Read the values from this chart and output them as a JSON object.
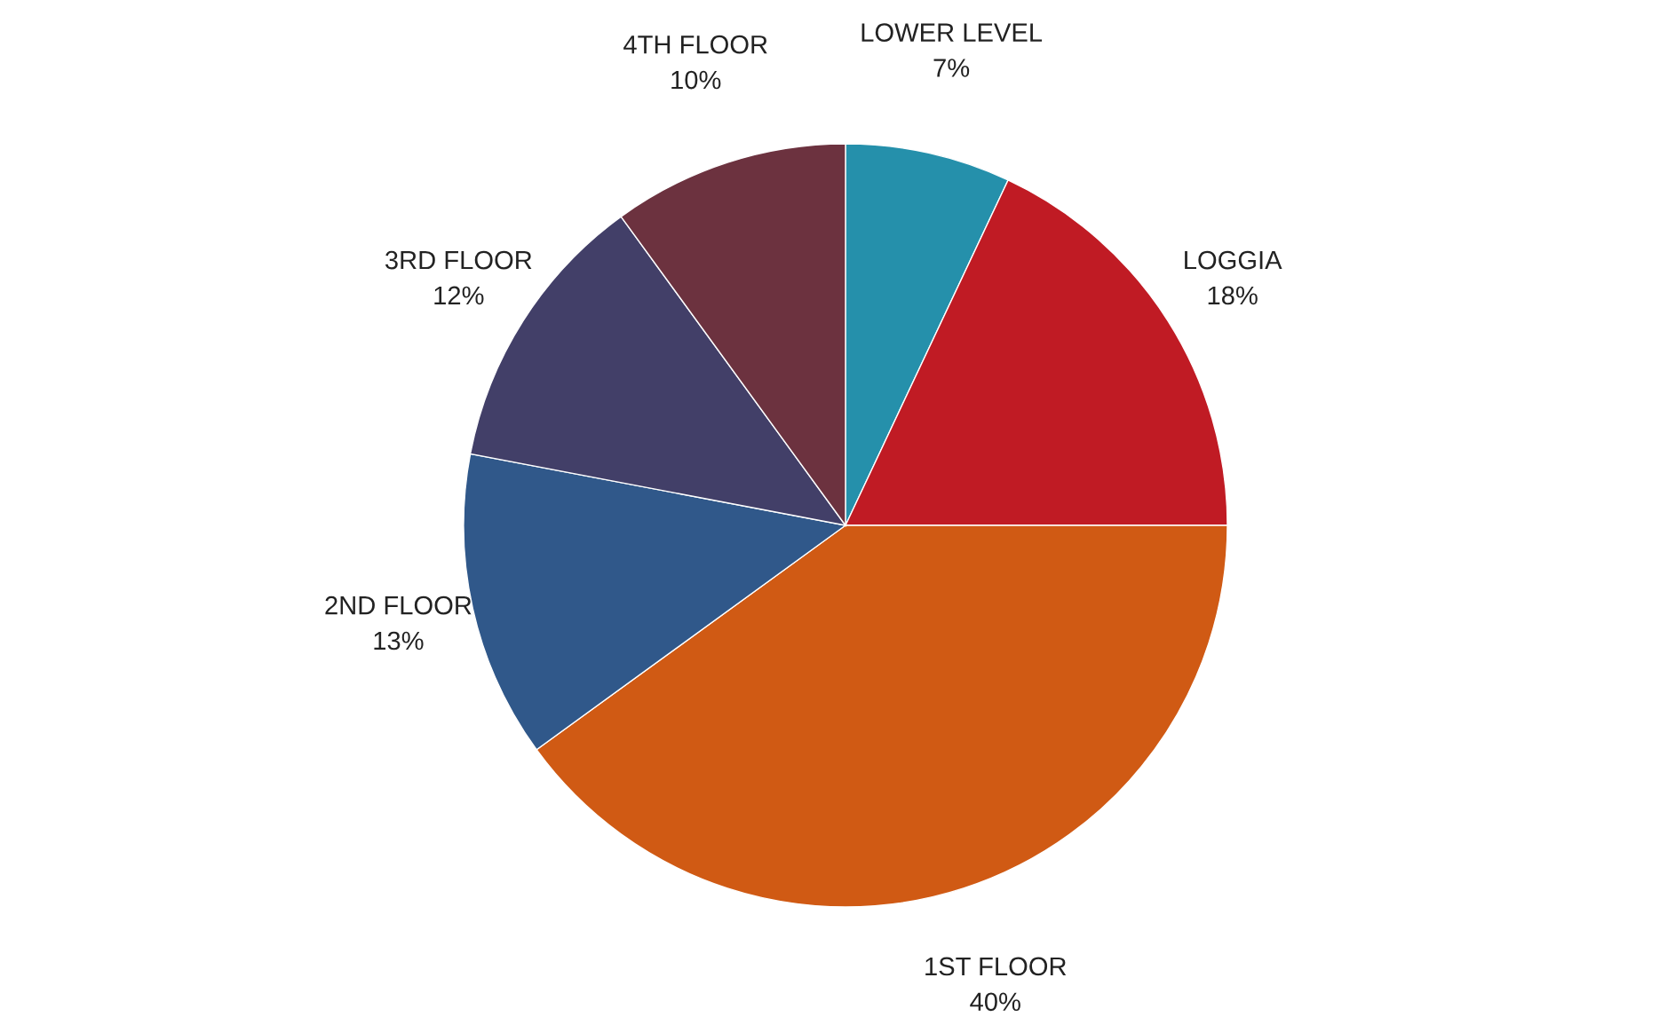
{
  "chart_data": {
    "type": "pie",
    "categories": [
      "LOWER LEVEL",
      "LOGGIA",
      "1ST FLOOR",
      "2ND FLOOR",
      "3RD FLOOR",
      "4TH FLOOR"
    ],
    "values": [
      7,
      18,
      40,
      13,
      12,
      10
    ],
    "value_labels": [
      "7%",
      "18%",
      "40%",
      "13%",
      "12%",
      "10%"
    ],
    "colors": [
      "#2590ab",
      "#c01b24",
      "#d05a14",
      "#30588a",
      "#423f68",
      "#6c323f"
    ],
    "legend": false
  }
}
